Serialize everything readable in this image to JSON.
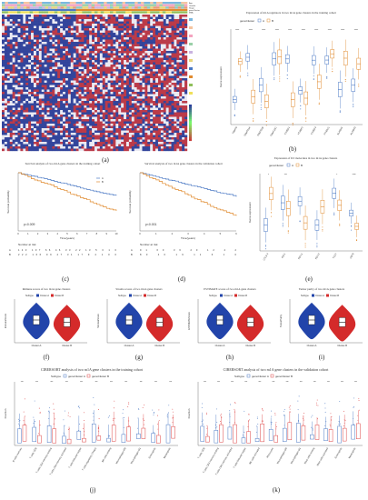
{
  "figure": {
    "panel_labels": [
      "(a)",
      "(b)",
      "(c)",
      "(d)",
      "(e)",
      "(f)",
      "(g)",
      "(h)",
      "(i)",
      "(j)",
      "(k)"
    ]
  },
  "panels": {
    "a": {
      "annotation_rows": [
        "Age",
        "Gender",
        "Stage",
        "geneCluster",
        "M6A"
      ],
      "title": ""
    },
    "b": {
      "title": "Expression of m1A regulators in two m1A gene clusters in the training cohort",
      "legend_title": "geneCluster",
      "legend": [
        "A",
        "B"
      ],
      "ylabel": "Gene expression",
      "categories": [
        "TRMT6",
        "TRMT61A",
        "TRMT61B",
        "TRMT10C",
        "YTHDF1",
        "YTHDF2",
        "YTHDF3",
        "YTHDC1",
        "ALKBH1",
        "ALKBH3"
      ],
      "sig": [
        "****",
        "****",
        "****",
        "****",
        "****",
        "****",
        "****",
        "****",
        "****",
        "****"
      ]
    },
    "c": {
      "title": "Survival analysis of two m1A gene clusters in the training cohort",
      "pval": "p=0.009",
      "ylabel": "Survival probability",
      "xlabel": "Time(years)",
      "legend": [
        "A",
        "B"
      ],
      "risk_title": "Number at risk",
      "risk_rows": [
        {
          "name": "A",
          "values": "143 107 66 46 33 22 13 5 3 1 0"
        },
        {
          "name": "B",
          "values": "222 166 99 47 31 17 9 4 1 0 0"
        }
      ],
      "x_ticks": [
        "0",
        "1",
        "2",
        "3",
        "4",
        "5",
        "6",
        "7",
        "8",
        "9",
        "10"
      ]
    },
    "d": {
      "title": "Survival analysis of two m1A gene clusters in the validation cohort",
      "pval": "p<0.001",
      "ylabel": "Survival probability",
      "xlabel": "Time(years)",
      "risk_title": "Number at risk",
      "risk_rows": [
        {
          "name": "A",
          "values": "91 60 36 20 12 4 2"
        },
        {
          "name": "B",
          "values": "80 40 19 11 6 1 0"
        }
      ],
      "x_ticks": [
        "0",
        "1",
        "2",
        "3",
        "4",
        "5",
        "6"
      ]
    },
    "e": {
      "title": "Expression of ICI molecules in two m1A gene clusters",
      "legend_title": "geneCluster",
      "legend": [
        "A",
        "B"
      ],
      "ylabel": "Gene expression",
      "categories": [
        "CTLA-4",
        "PD-1",
        "PD-L1",
        "PD-L2",
        "TIGIT",
        "CD70"
      ],
      "sig": [
        "*",
        "***",
        "",
        "",
        "*",
        "****"
      ]
    },
    "f": {
      "title": "Immune scores of two m1A gene clusters",
      "legend": [
        "Subtype",
        "Cluster-A",
        "Cluster-B"
      ],
      "ylabel": "ImmuneScore",
      "cats": [
        "Cluster-A",
        "Cluster-B"
      ]
    },
    "g": {
      "title": "Stroma scores of two m1A gene clusters",
      "legend": [
        "Subtype",
        "Cluster-A",
        "Cluster-B"
      ],
      "ylabel": "StromalScore",
      "cats": [
        "Cluster-A",
        "Cluster-B"
      ]
    },
    "h": {
      "title": "ESTIMATE scores of two m1A gene clusters",
      "legend": [
        "Subtype",
        "Cluster-A",
        "Cluster-B"
      ],
      "ylabel": "ESTIMATEScore",
      "cats": [
        "Cluster-A",
        "Cluster-B"
      ]
    },
    "i": {
      "title": "Tumor purity of two m1A gene clusters",
      "legend": [
        "Subtype",
        "Cluster-A",
        "Cluster-B"
      ],
      "ylabel": "TumorPurity",
      "cats": [
        "Cluster-A",
        "Cluster-B"
      ]
    },
    "j": {
      "title": "CIBERSORT analysis of two m1A gene clusters in the training cohort",
      "legend": [
        "Subtype",
        "geneCluster A",
        "geneCluster B"
      ],
      "ylabel": "Fraction",
      "categories": [
        "B cells memory",
        "T cells CD8",
        "T cells CD4 memory resting",
        "T cells CD4 memory activated",
        "T cells follicular helper",
        "T cells regulatory (Tregs)",
        "NK cells resting",
        "Macrophages M0",
        "Macrophages M1",
        "Eosinophils",
        "Neutrophils"
      ]
    },
    "k": {
      "title": "CIBERSORT analysis of two m1A gene clusters in the validation cohort",
      "legend": [
        "Subtype",
        "geneCluster A",
        "geneCluster B"
      ],
      "ylabel": "Fraction",
      "categories": [
        "T cells CD8",
        "T cells CD4 memory resting",
        "T cells CD4 memory activated",
        "T cells follicular helper",
        "NK cells activated",
        "Monocytes",
        "Macrophages M0",
        "Macrophages M1",
        "Mast cells resting",
        "Mast cells activated",
        "Eosinophils",
        "Neutrophils"
      ]
    }
  },
  "colors": {
    "clusterA": "#4a78c4",
    "clusterB": "#e08a2e",
    "violinA": "#2244aa",
    "violinB": "#d42a2a",
    "heatBlue": "#2a3f9a",
    "heatRed": "#c8323a"
  }
}
